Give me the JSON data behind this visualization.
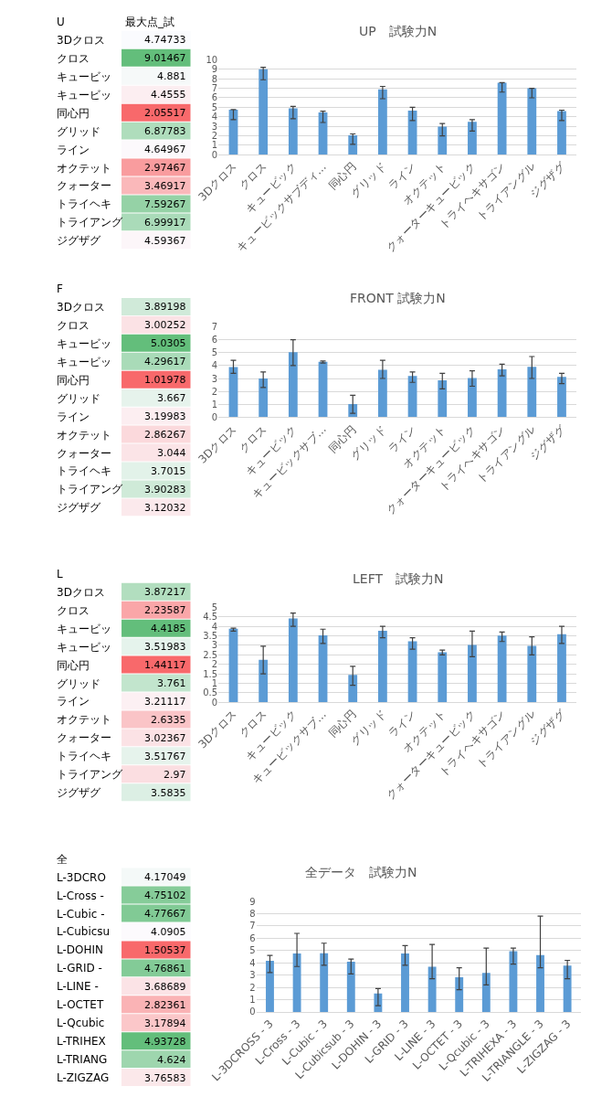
{
  "chart_data": [
    {
      "type": "heatmap",
      "data_labels": true,
      "title": "U",
      "categories": [
        "最大点_試"
      ],
      "y_categories": [
        "3Dクロス",
        "クロス",
        "キュービッ",
        "キュービッ",
        "同心円",
        "グリッド",
        "ライン",
        "オクテット",
        "クォーター",
        "トライヘキ",
        "トライアング",
        "ジグザグ"
      ],
      "cells": [
        [
          4.74733
        ],
        [
          9.01467
        ],
        [
          4.881
        ],
        [
          4.4555
        ],
        [
          2.05517
        ],
        [
          6.87783
        ],
        [
          4.64967
        ],
        [
          2.97467
        ],
        [
          3.46917
        ],
        [
          7.59267
        ],
        [
          6.99917
        ],
        [
          4.59367
        ]
      ]
    },
    {
      "type": "bar",
      "title": "UP　試験力N",
      "categories": [
        "3Dクロス",
        "クロス",
        "キュービック",
        "キュービックサブディ…",
        "同心円",
        "グリッド",
        "ライン",
        "オクテット",
        "クォーターキュービック",
        "トライヘキサゴン",
        "トライアングル",
        "ジグザグ"
      ],
      "values": [
        4.74733,
        9.01467,
        4.881,
        4.4555,
        2.05517,
        6.87783,
        4.64967,
        2.97467,
        3.46917,
        7.59267,
        6.99917,
        4.59367
      ],
      "errors": [
        [
          3.7,
          4.75
        ],
        [
          7.9,
          9.2
        ],
        [
          3.8,
          5.1
        ],
        [
          3.4,
          4.6
        ],
        [
          1.1,
          2.2
        ],
        [
          5.9,
          7.2
        ],
        [
          3.6,
          5.0
        ],
        [
          2.0,
          3.3
        ],
        [
          2.5,
          3.7
        ],
        [
          6.6,
          7.6
        ],
        [
          6.0,
          7.0
        ],
        [
          3.6,
          4.7
        ]
      ],
      "color": "#5b9bd5",
      "ylim": [
        0,
        10
      ],
      "yticks": [
        0,
        1,
        2,
        3,
        4,
        5,
        6,
        7,
        8,
        9,
        10
      ],
      "grid": "y"
    },
    {
      "type": "heatmap",
      "data_labels": true,
      "title": "F",
      "categories": [
        null
      ],
      "y_categories": [
        "3Dクロス",
        "クロス",
        "キュービッ",
        "キュービッ",
        "同心円",
        "グリッド",
        "ライン",
        "オクテット",
        "クォーター",
        "トライヘキ",
        "トライアング",
        "ジグザグ"
      ],
      "cells": [
        [
          3.89198
        ],
        [
          3.00252
        ],
        [
          5.0305
        ],
        [
          4.29617
        ],
        [
          1.01978
        ],
        [
          3.667
        ],
        [
          3.19983
        ],
        [
          2.86267
        ],
        [
          3.044
        ],
        [
          3.7015
        ],
        [
          3.90283
        ],
        [
          3.12032
        ]
      ]
    },
    {
      "type": "bar",
      "title": "FRONT 試験力N",
      "categories": [
        "3Dクロス",
        "クロス",
        "キュービック",
        "キュービックサブ…",
        "同心円",
        "グリッド",
        "ライン",
        "オクテット",
        "クォーターキュービック",
        "トライヘキサゴン",
        "トライアングル",
        "ジグザグ"
      ],
      "values": [
        3.89198,
        3.00252,
        5.0305,
        4.29617,
        1.01978,
        3.667,
        3.19983,
        2.86267,
        3.044,
        3.7015,
        3.90283,
        3.12032
      ],
      "errors": [
        [
          3.4,
          4.4
        ],
        [
          2.3,
          3.5
        ],
        [
          4.0,
          6.0
        ],
        [
          4.2,
          4.35
        ],
        [
          0.3,
          1.7
        ],
        [
          3.0,
          4.4
        ],
        [
          2.7,
          3.5
        ],
        [
          2.2,
          3.4
        ],
        [
          2.4,
          3.6
        ],
        [
          3.2,
          4.1
        ],
        [
          3.0,
          4.7
        ],
        [
          2.6,
          3.4
        ]
      ],
      "color": "#5b9bd5",
      "ylim": [
        0,
        7
      ],
      "yticks": [
        0,
        1,
        2,
        3,
        4,
        5,
        6,
        7
      ],
      "grid": "y"
    },
    {
      "type": "heatmap",
      "data_labels": true,
      "title": "L",
      "categories": [
        null
      ],
      "y_categories": [
        "3Dクロス",
        "クロス",
        "キュービッ",
        "キュービッ",
        "同心円",
        "グリッド",
        "ライン",
        "オクテット",
        "クォーター",
        "トライヘキ",
        "トライアング",
        "ジグザグ"
      ],
      "cells": [
        [
          3.87217
        ],
        [
          2.23587
        ],
        [
          4.4185
        ],
        [
          3.51983
        ],
        [
          1.44117
        ],
        [
          3.761
        ],
        [
          3.21117
        ],
        [
          2.6335
        ],
        [
          3.02367
        ],
        [
          3.51767
        ],
        [
          2.97
        ],
        [
          3.5835
        ]
      ]
    },
    {
      "type": "bar",
      "title": "LEFT　試験力N",
      "categories": [
        "3Dクロス",
        "クロス",
        "キュービック",
        "キュービックサブ…",
        "同心円",
        "グリッド",
        "ライン",
        "オクテット",
        "クォーターキュービック",
        "トライヘキサゴン",
        "トライアングル",
        "ジグザグ"
      ],
      "values": [
        3.87217,
        2.23587,
        4.4185,
        3.51983,
        1.44117,
        3.761,
        3.21117,
        2.6335,
        3.02367,
        3.51767,
        2.97,
        3.5835
      ],
      "errors": [
        [
          3.75,
          3.9
        ],
        [
          1.5,
          2.95
        ],
        [
          4.0,
          4.7
        ],
        [
          3.1,
          3.85
        ],
        [
          0.9,
          1.9
        ],
        [
          3.4,
          4.0
        ],
        [
          2.8,
          3.4
        ],
        [
          2.5,
          2.75
        ],
        [
          2.4,
          3.75
        ],
        [
          3.2,
          3.7
        ],
        [
          2.5,
          3.45
        ],
        [
          3.1,
          4.0
        ]
      ],
      "color": "#5b9bd5",
      "ylim": [
        0,
        5
      ],
      "yticks": [
        0,
        0.5,
        1,
        1.5,
        2,
        2.5,
        3,
        3.5,
        4,
        4.5,
        5
      ],
      "grid": "y"
    },
    {
      "type": "heatmap",
      "data_labels": true,
      "title": "全",
      "categories": [
        null
      ],
      "y_categories": [
        "L-3DCRO",
        "L-Cross -",
        "L-Cubic -",
        "L-Cubicsu",
        "L-DOHIN",
        "L-GRID -",
        "L-LINE -",
        "L-OCTET",
        "L-Qcubic",
        "L-TRIHEX",
        "L-TRIANG",
        "L-ZIGZAG"
      ],
      "cells": [
        [
          4.17049
        ],
        [
          4.75102
        ],
        [
          4.77667
        ],
        [
          4.0905
        ],
        [
          1.50537
        ],
        [
          4.76861
        ],
        [
          3.68689
        ],
        [
          2.82361
        ],
        [
          3.17894
        ],
        [
          4.93728
        ],
        [
          4.624
        ],
        [
          3.76583
        ]
      ]
    },
    {
      "type": "bar",
      "title": "全データ　試験力N",
      "categories": [
        "L-3DCROSS - 3",
        "L-Cross - 3",
        "L-Cubic - 3",
        "L-Cubicsub - 3",
        "L-DOHIN - 3",
        "L-GRID - 3",
        "L-LINE - 3",
        "L-OCTET - 3",
        "L-Qcubic - 3",
        "L-TRIHEXA - 3",
        "L-TRIANGLE - 3",
        "L-ZIGZAG - 3"
      ],
      "values": [
        4.17049,
        4.75102,
        4.77667,
        4.0905,
        1.50537,
        4.76861,
        3.68689,
        2.82361,
        3.17894,
        4.93728,
        4.624,
        3.76583
      ],
      "errors": [
        [
          3.2,
          4.6
        ],
        [
          3.7,
          6.4
        ],
        [
          3.8,
          5.6
        ],
        [
          3.1,
          4.3
        ],
        [
          0.5,
          1.9
        ],
        [
          3.8,
          5.4
        ],
        [
          2.7,
          5.5
        ],
        [
          1.8,
          3.6
        ],
        [
          2.2,
          5.2
        ],
        [
          3.9,
          5.2
        ],
        [
          3.6,
          7.8
        ],
        [
          2.7,
          4.2
        ]
      ],
      "color": "#5b9bd5",
      "ylim": [
        0,
        9
      ],
      "yticks": [
        0,
        1,
        2,
        3,
        4,
        5,
        6,
        7,
        8,
        9
      ],
      "grid": "y"
    }
  ]
}
